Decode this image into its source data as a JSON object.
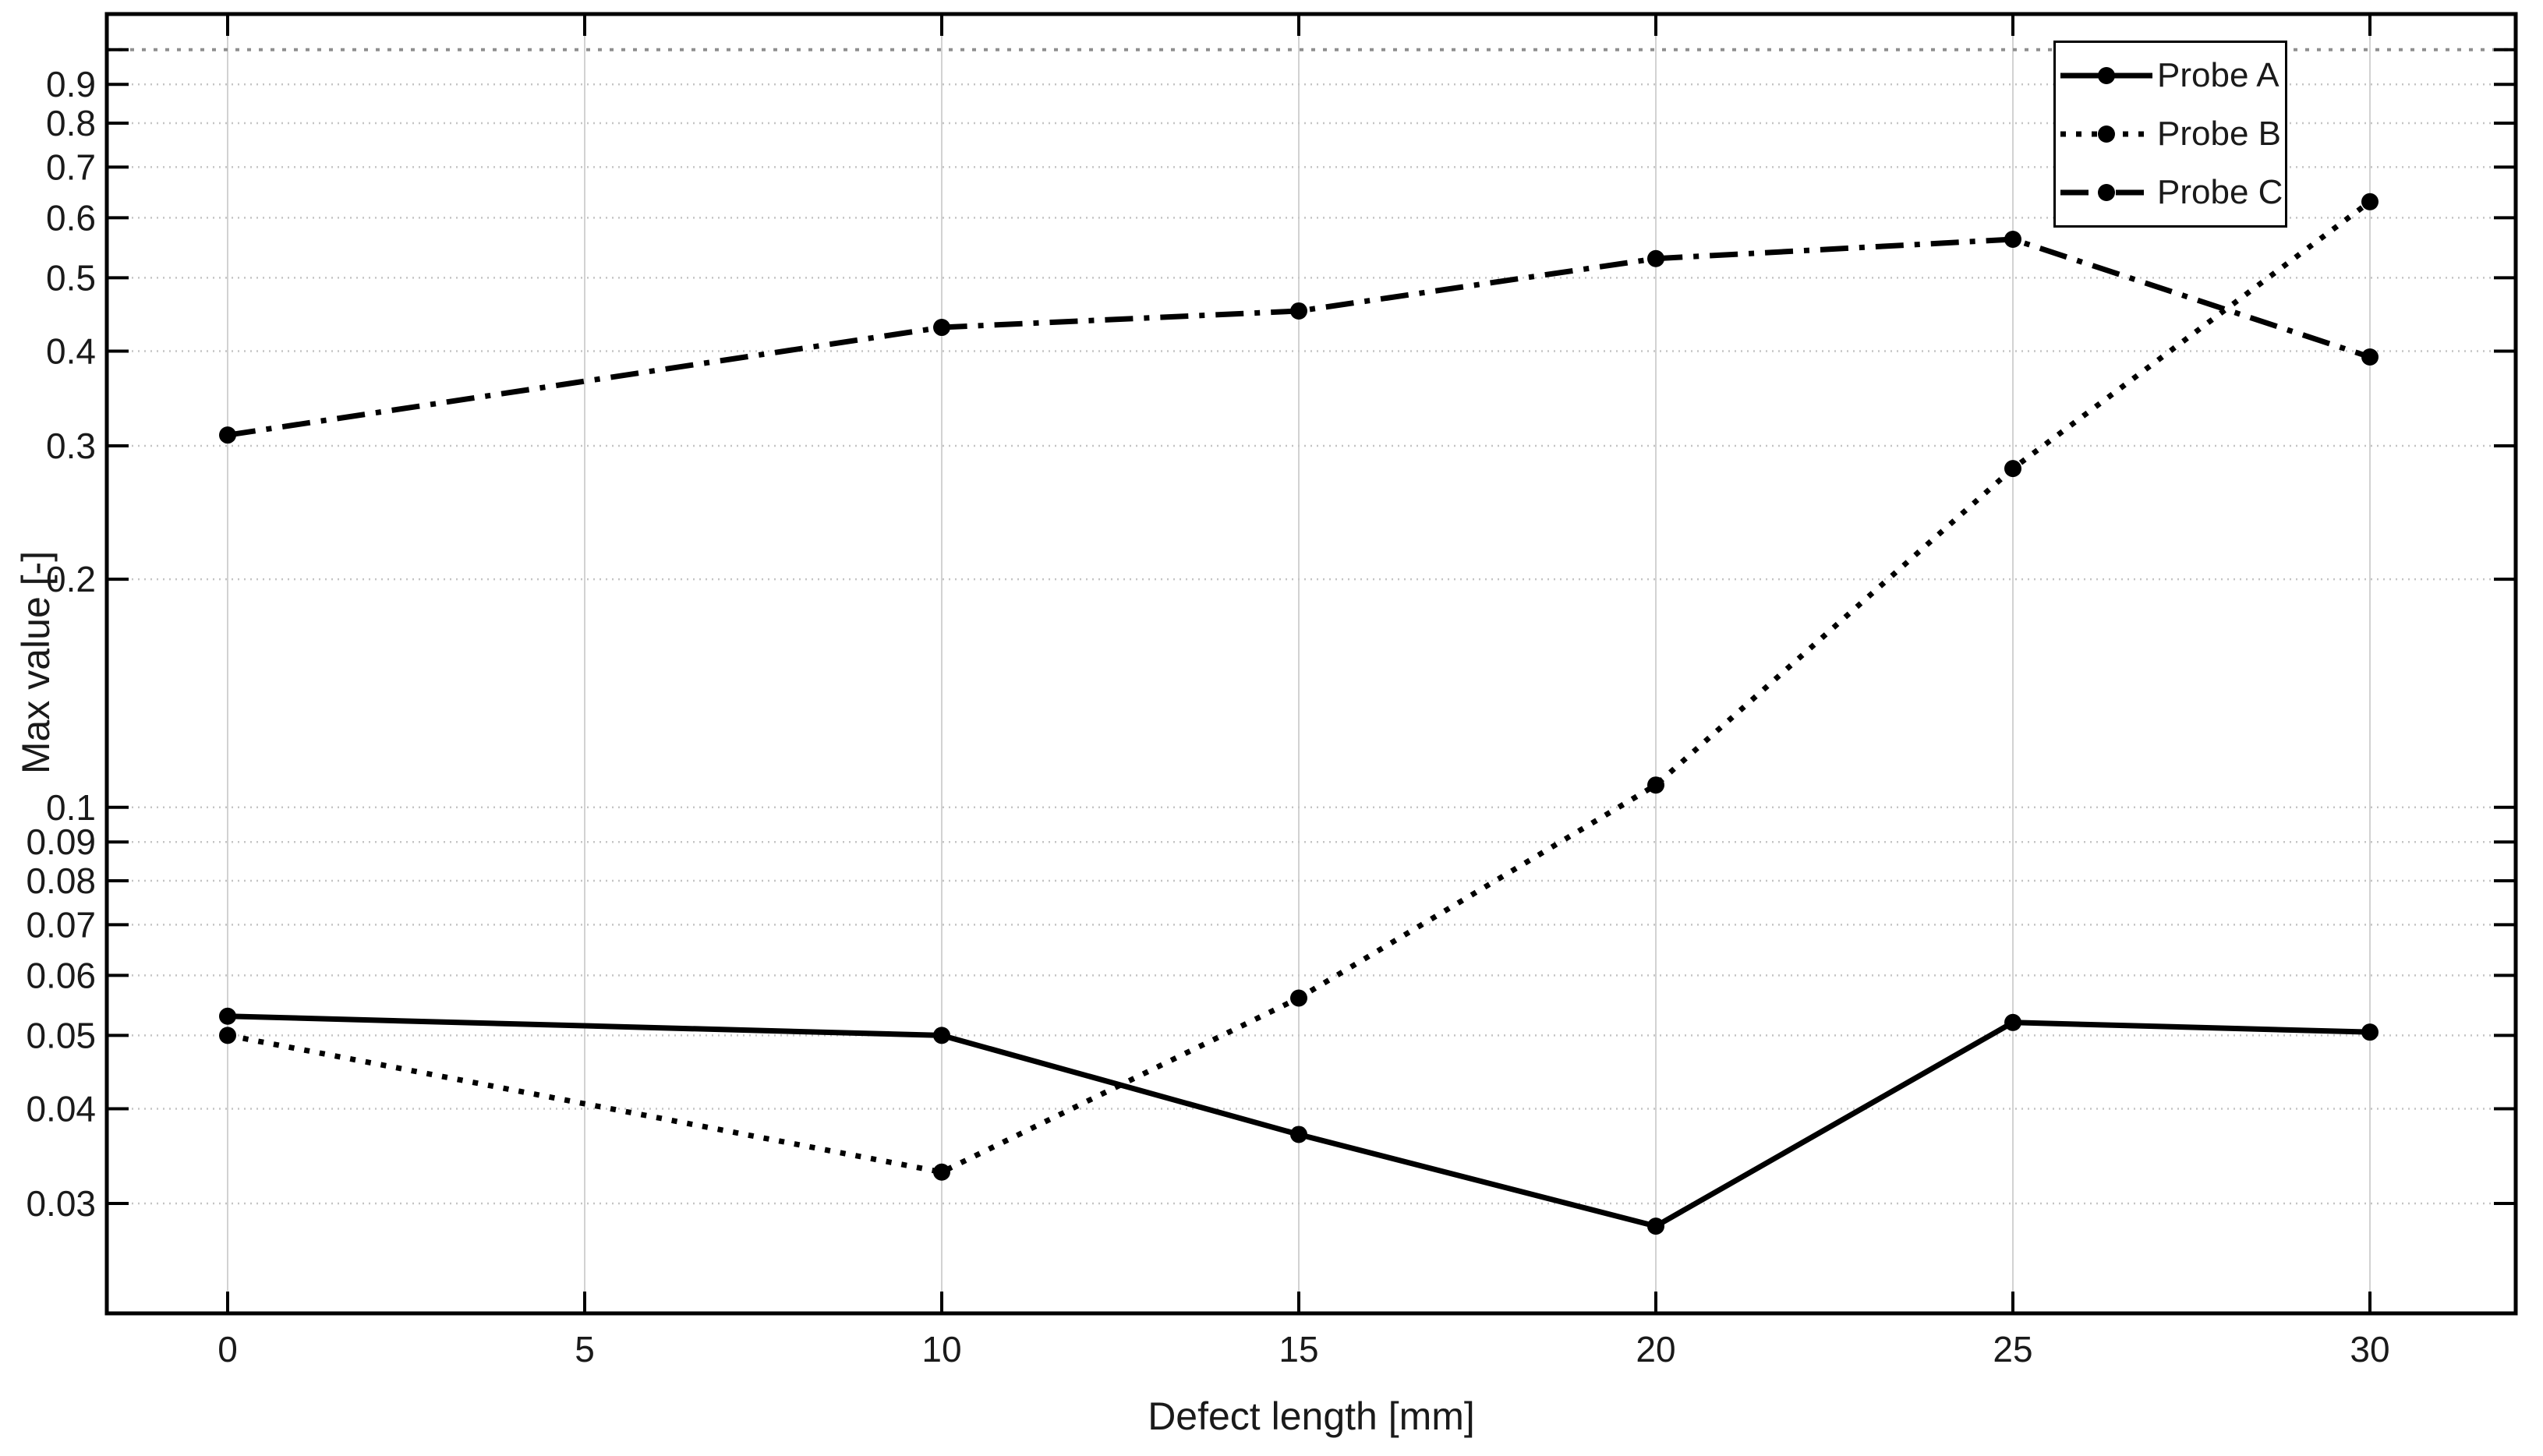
{
  "colors": {
    "series": "#000000",
    "axis": "#000000",
    "grid_vertical": "#d2d2d2",
    "grid_horizontal": "#c4c4c4",
    "reference_line": "#8f8f8f",
    "text": "#1a1a1a",
    "background": "#ffffff",
    "legend_border": "#000000"
  },
  "chart_data": {
    "type": "line",
    "title": "",
    "xlabel": "Defect length [mm]",
    "ylabel": "Max value [-]",
    "x_scale": "linear",
    "y_scale": "log",
    "xlim": [
      -1.7,
      32.1
    ],
    "ylim": [
      0.0215,
      1.11
    ],
    "grid": true,
    "legend_position": "top-right",
    "x": [
      0,
      10,
      15,
      20,
      25,
      30
    ],
    "x_tick_labels": [
      "0",
      "5",
      "10",
      "15",
      "20",
      "25",
      "30"
    ],
    "x_tick_values": [
      0,
      5,
      10,
      15,
      20,
      25,
      30
    ],
    "y_tick_labels": [
      "0.9",
      "0.8",
      "0.7",
      "0.6",
      "0.5",
      "0.4",
      "0.3",
      "0.2",
      "0.1",
      "0.09",
      "0.08",
      "0.07",
      "0.06",
      "0.05",
      "0.04",
      "0.03"
    ],
    "y_tick_values": [
      0.9,
      0.8,
      0.7,
      0.6,
      0.5,
      0.4,
      0.3,
      0.2,
      0.1,
      0.09,
      0.08,
      0.07,
      0.06,
      0.05,
      0.04,
      0.03
    ],
    "y_ticks_unlabeled": [
      1.0
    ],
    "reference_line": {
      "y": 1.0,
      "style": "dotted"
    },
    "series": [
      {
        "name": "Probe A",
        "style": "solid",
        "marker": "circle",
        "values": [
          0.053,
          0.05,
          0.037,
          0.028,
          0.052,
          0.0505
        ]
      },
      {
        "name": "Probe B",
        "style": "dotted",
        "marker": "circle",
        "values": [
          0.05,
          0.033,
          0.056,
          0.107,
          0.28,
          0.63
        ]
      },
      {
        "name": "Probe C",
        "style": "dashdot",
        "marker": "circle",
        "values": [
          0.31,
          0.43,
          0.452,
          0.53,
          0.562,
          0.393
        ]
      }
    ]
  }
}
